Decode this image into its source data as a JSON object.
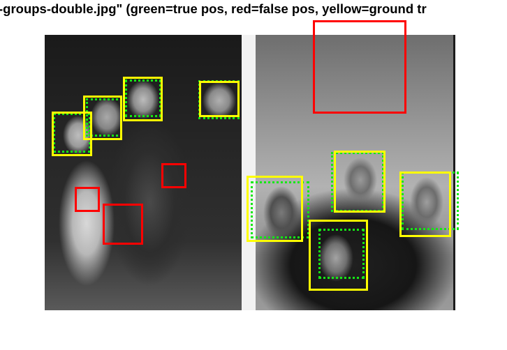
{
  "figure": {
    "title": "-groups-double.jpg\" (green=true pos, red=false pos, yellow=ground tr"
  },
  "legend_colors": {
    "true_positive": "#14e914",
    "false_positive": "#ff0000",
    "ground_truth": "#ffff00"
  }
}
